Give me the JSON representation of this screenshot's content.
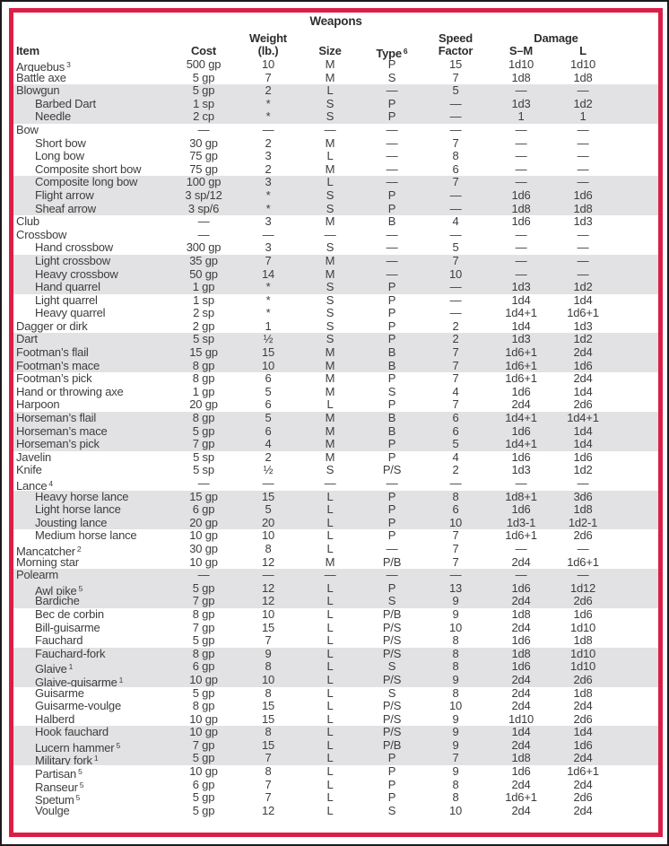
{
  "colors": {
    "border_red": "#dc1e47",
    "row_shade": "#e2e2e5",
    "text": "#3d3d3d",
    "frame_black": "#1b1b1b"
  },
  "table": {
    "title": "Weapons",
    "columns": {
      "item": "Item",
      "cost": "Cost",
      "weight_line1": "Weight",
      "weight_line2": "(lb.)",
      "size": "Size",
      "type": "Type",
      "type_sup": "6",
      "speed_line1": "Speed",
      "speed_line2": "Factor",
      "damage": "Damage",
      "sm": "S–M",
      "l": "L"
    },
    "rows": [
      {
        "item": "Arquebus",
        "sup": "3",
        "indent": false,
        "shaded": false,
        "cost": "500 gp",
        "weight": "10",
        "size": "M",
        "type": "P",
        "speed": "15",
        "sm": "1d10",
        "l": "1d10"
      },
      {
        "item": "Battle axe",
        "indent": false,
        "shaded": false,
        "cost": "5 gp",
        "weight": "7",
        "size": "M",
        "type": "S",
        "speed": "7",
        "sm": "1d8",
        "l": "1d8"
      },
      {
        "item": "Blowgun",
        "indent": false,
        "shaded": true,
        "cost": "5 gp",
        "weight": "2",
        "size": "L",
        "type": "—",
        "speed": "5",
        "sm": "—",
        "l": "—"
      },
      {
        "item": "Barbed Dart",
        "indent": true,
        "shaded": true,
        "cost": "1 sp",
        "weight": "*",
        "size": "S",
        "type": "P",
        "speed": "—",
        "sm": "1d3",
        "l": "1d2"
      },
      {
        "item": "Needle",
        "indent": true,
        "shaded": true,
        "cost": "2 cp",
        "weight": "*",
        "size": "S",
        "type": "P",
        "speed": "—",
        "sm": "1",
        "l": "1"
      },
      {
        "item": "Bow",
        "indent": false,
        "shaded": false,
        "cost": "—",
        "weight": "—",
        "size": "—",
        "type": "—",
        "speed": "—",
        "sm": "—",
        "l": "—"
      },
      {
        "item": "Short bow",
        "indent": true,
        "shaded": false,
        "cost": "30 gp",
        "weight": "2",
        "size": "M",
        "type": "—",
        "speed": "7",
        "sm": "—",
        "l": "—"
      },
      {
        "item": "Long bow",
        "indent": true,
        "shaded": false,
        "cost": "75 gp",
        "weight": "3",
        "size": "L",
        "type": "—",
        "speed": "8",
        "sm": "—",
        "l": "—"
      },
      {
        "item": "Composite short bow",
        "indent": true,
        "shaded": false,
        "cost": "75 gp",
        "weight": "2",
        "size": "M",
        "type": "—",
        "speed": "6",
        "sm": "—",
        "l": "—"
      },
      {
        "item": "Composite long bow",
        "indent": true,
        "shaded": true,
        "cost": "100 gp",
        "weight": "3",
        "size": "L",
        "type": "—",
        "speed": "7",
        "sm": "—",
        "l": "—"
      },
      {
        "item": "Flight arrow",
        "indent": true,
        "shaded": true,
        "cost": "3 sp/12",
        "weight": "*",
        "size": "S",
        "type": "P",
        "speed": "—",
        "sm": "1d6",
        "l": "1d6"
      },
      {
        "item": "Sheaf arrow",
        "indent": true,
        "shaded": true,
        "cost": "3 sp/6",
        "weight": "*",
        "size": "S",
        "type": "P",
        "speed": "—",
        "sm": "1d8",
        "l": "1d8"
      },
      {
        "item": "Club",
        "indent": false,
        "shaded": false,
        "cost": "—",
        "weight": "3",
        "size": "M",
        "type": "B",
        "speed": "4",
        "sm": "1d6",
        "l": "1d3"
      },
      {
        "item": "Crossbow",
        "indent": false,
        "shaded": false,
        "cost": "—",
        "weight": "—",
        "size": "—",
        "type": "—",
        "speed": "—",
        "sm": "—",
        "l": "—"
      },
      {
        "item": "Hand crossbow",
        "indent": true,
        "shaded": false,
        "cost": "300 gp",
        "weight": "3",
        "size": "S",
        "type": "—",
        "speed": "5",
        "sm": "—",
        "l": "—"
      },
      {
        "item": "Light crossbow",
        "indent": true,
        "shaded": true,
        "cost": "35 gp",
        "weight": "7",
        "size": "M",
        "type": "—",
        "speed": "7",
        "sm": "—",
        "l": "—"
      },
      {
        "item": "Heavy crossbow",
        "indent": true,
        "shaded": true,
        "cost": "50 gp",
        "weight": "14",
        "size": "M",
        "type": "—",
        "speed": "10",
        "sm": "—",
        "l": "—"
      },
      {
        "item": "Hand quarrel",
        "indent": true,
        "shaded": true,
        "cost": "1 gp",
        "weight": "*",
        "size": "S",
        "type": "P",
        "speed": "—",
        "sm": "1d3",
        "l": "1d2"
      },
      {
        "item": "Light quarrel",
        "indent": true,
        "shaded": false,
        "cost": "1 sp",
        "weight": "*",
        "size": "S",
        "type": "P",
        "speed": "—",
        "sm": "1d4",
        "l": "1d4"
      },
      {
        "item": "Heavy quarrel",
        "indent": true,
        "shaded": false,
        "cost": "2 sp",
        "weight": "*",
        "size": "S",
        "type": "P",
        "speed": "—",
        "sm": "1d4+1",
        "l": "1d6+1"
      },
      {
        "item": "Dagger or dirk",
        "indent": false,
        "shaded": false,
        "cost": "2 gp",
        "weight": "1",
        "size": "S",
        "type": "P",
        "speed": "2",
        "sm": "1d4",
        "l": "1d3"
      },
      {
        "item": "Dart",
        "indent": false,
        "shaded": true,
        "cost": "5 sp",
        "weight": "½",
        "size": "S",
        "type": "P",
        "speed": "2",
        "sm": "1d3",
        "l": "1d2"
      },
      {
        "item": "Footman’s flail",
        "indent": false,
        "shaded": true,
        "cost": "15 gp",
        "weight": "15",
        "size": "M",
        "type": "B",
        "speed": "7",
        "sm": "1d6+1",
        "l": "2d4"
      },
      {
        "item": "Footman’s mace",
        "indent": false,
        "shaded": true,
        "cost": "8 gp",
        "weight": "10",
        "size": "M",
        "type": "B",
        "speed": "7",
        "sm": "1d6+1",
        "l": "1d6"
      },
      {
        "item": "Footman’s pick",
        "indent": false,
        "shaded": false,
        "cost": "8 gp",
        "weight": "6",
        "size": "M",
        "type": "P",
        "speed": "7",
        "sm": "1d6+1",
        "l": "2d4"
      },
      {
        "item": "Hand or throwing axe",
        "indent": false,
        "shaded": false,
        "cost": "1 gp",
        "weight": "5",
        "size": "M",
        "type": "S",
        "speed": "4",
        "sm": "1d6",
        "l": "1d4"
      },
      {
        "item": "Harpoon",
        "indent": false,
        "shaded": false,
        "cost": "20 gp",
        "weight": "6",
        "size": "L",
        "type": "P",
        "speed": "7",
        "sm": "2d4",
        "l": "2d6"
      },
      {
        "item": "Horseman’s flail",
        "indent": false,
        "shaded": true,
        "cost": "8 gp",
        "weight": "5",
        "size": "M",
        "type": "B",
        "speed": "6",
        "sm": "1d4+1",
        "l": "1d4+1"
      },
      {
        "item": "Horseman’s mace",
        "indent": false,
        "shaded": true,
        "cost": "5 gp",
        "weight": "6",
        "size": "M",
        "type": "B",
        "speed": "6",
        "sm": "1d6",
        "l": "1d4"
      },
      {
        "item": "Horseman’s pick",
        "indent": false,
        "shaded": true,
        "cost": "7 gp",
        "weight": "4",
        "size": "M",
        "type": "P",
        "speed": "5",
        "sm": "1d4+1",
        "l": "1d4"
      },
      {
        "item": "Javelin",
        "indent": false,
        "shaded": false,
        "cost": "5 sp",
        "weight": "2",
        "size": "M",
        "type": "P",
        "speed": "4",
        "sm": "1d6",
        "l": "1d6"
      },
      {
        "item": "Knife",
        "indent": false,
        "shaded": false,
        "cost": "5 sp",
        "weight": "½",
        "size": "S",
        "type": "P/S",
        "speed": "2",
        "sm": "1d3",
        "l": "1d2"
      },
      {
        "item": "Lance",
        "sup": "4",
        "indent": false,
        "shaded": false,
        "cost": "—",
        "weight": "—",
        "size": "—",
        "type": "—",
        "speed": "—",
        "sm": "—",
        "l": "—"
      },
      {
        "item": "Heavy horse lance",
        "indent": true,
        "shaded": true,
        "cost": "15 gp",
        "weight": "15",
        "size": "L",
        "type": "P",
        "speed": "8",
        "sm": "1d8+1",
        "l": "3d6"
      },
      {
        "item": "Light horse lance",
        "indent": true,
        "shaded": true,
        "cost": "6 gp",
        "weight": "5",
        "size": "L",
        "type": "P",
        "speed": "6",
        "sm": "1d6",
        "l": "1d8"
      },
      {
        "item": "Jousting lance",
        "indent": true,
        "shaded": true,
        "cost": "20 gp",
        "weight": "20",
        "size": "L",
        "type": "P",
        "speed": "10",
        "sm": "1d3-1",
        "l": "1d2-1"
      },
      {
        "item": "Medium horse lance",
        "indent": true,
        "shaded": false,
        "cost": "10 gp",
        "weight": "10",
        "size": "L",
        "type": "P",
        "speed": "7",
        "sm": "1d6+1",
        "l": "2d6"
      },
      {
        "item": "Mancatcher",
        "sup": "2",
        "indent": false,
        "shaded": false,
        "cost": "30 gp",
        "weight": "8",
        "size": "L",
        "type": "—",
        "speed": "7",
        "sm": "—",
        "l": "—"
      },
      {
        "item": "Morning star",
        "indent": false,
        "shaded": false,
        "cost": "10 gp",
        "weight": "12",
        "size": "M",
        "type": "P/B",
        "speed": "7",
        "sm": "2d4",
        "l": "1d6+1"
      },
      {
        "item": "Polearm",
        "indent": false,
        "shaded": true,
        "cost": "—",
        "weight": "—",
        "size": "—",
        "type": "—",
        "speed": "—",
        "sm": "—",
        "l": "—"
      },
      {
        "item": "Awl pike",
        "sup": "5",
        "indent": true,
        "shaded": true,
        "cost": "5 gp",
        "weight": "12",
        "size": "L",
        "type": "P",
        "speed": "13",
        "sm": "1d6",
        "l": "1d12"
      },
      {
        "item": "Bardiche",
        "indent": true,
        "shaded": true,
        "cost": "7 gp",
        "weight": "12",
        "size": "L",
        "type": "S",
        "speed": "9",
        "sm": "2d4",
        "l": "2d6"
      },
      {
        "item": "Bec de corbin",
        "indent": true,
        "shaded": false,
        "cost": "8 gp",
        "weight": "10",
        "size": "L",
        "type": "P/B",
        "speed": "9",
        "sm": "1d8",
        "l": "1d6"
      },
      {
        "item": "Bill-guisarme",
        "indent": true,
        "shaded": false,
        "cost": "7 gp",
        "weight": "15",
        "size": "L",
        "type": "P/S",
        "speed": "10",
        "sm": "2d4",
        "l": "1d10"
      },
      {
        "item": "Fauchard",
        "indent": true,
        "shaded": false,
        "cost": "5 gp",
        "weight": "7",
        "size": "L",
        "type": "P/S",
        "speed": "8",
        "sm": "1d6",
        "l": "1d8"
      },
      {
        "item": "Fauchard-fork",
        "indent": true,
        "shaded": true,
        "cost": "8 gp",
        "weight": "9",
        "size": "L",
        "type": "P/S",
        "speed": "8",
        "sm": "1d8",
        "l": "1d10"
      },
      {
        "item": "Glaive",
        "sup": "1",
        "indent": true,
        "shaded": true,
        "cost": "6 gp",
        "weight": "8",
        "size": "L",
        "type": "S",
        "speed": "8",
        "sm": "1d6",
        "l": "1d10"
      },
      {
        "item": "Glaive-guisarme",
        "sup": "1",
        "indent": true,
        "shaded": true,
        "cost": "10 gp",
        "weight": "10",
        "size": "L",
        "type": "P/S",
        "speed": "9",
        "sm": "2d4",
        "l": "2d6"
      },
      {
        "item": "Guisarme",
        "indent": true,
        "shaded": false,
        "cost": "5 gp",
        "weight": "8",
        "size": "L",
        "type": "S",
        "speed": "8",
        "sm": "2d4",
        "l": "1d8"
      },
      {
        "item": "Guisarme-voulge",
        "indent": true,
        "shaded": false,
        "cost": "8 gp",
        "weight": "15",
        "size": "L",
        "type": "P/S",
        "speed": "10",
        "sm": "2d4",
        "l": "2d4"
      },
      {
        "item": "Halberd",
        "indent": true,
        "shaded": false,
        "cost": "10 gp",
        "weight": "15",
        "size": "L",
        "type": "P/S",
        "speed": "9",
        "sm": "1d10",
        "l": "2d6"
      },
      {
        "item": "Hook fauchard",
        "indent": true,
        "shaded": true,
        "cost": "10 gp",
        "weight": "8",
        "size": "L",
        "type": "P/S",
        "speed": "9",
        "sm": "1d4",
        "l": "1d4"
      },
      {
        "item": "Lucern hammer",
        "sup": "5",
        "indent": true,
        "shaded": true,
        "cost": "7 gp",
        "weight": "15",
        "size": "L",
        "type": "P/B",
        "speed": "9",
        "sm": "2d4",
        "l": "1d6"
      },
      {
        "item": "Military fork",
        "sup": "1",
        "indent": true,
        "shaded": true,
        "cost": "5 gp",
        "weight": "7",
        "size": "L",
        "type": "P",
        "speed": "7",
        "sm": "1d8",
        "l": "2d4"
      },
      {
        "item": "Partisan",
        "sup": "5",
        "indent": true,
        "shaded": false,
        "cost": "10 gp",
        "weight": "8",
        "size": "L",
        "type": "P",
        "speed": "9",
        "sm": "1d6",
        "l": "1d6+1"
      },
      {
        "item": "Ranseur",
        "sup": "5",
        "indent": true,
        "shaded": false,
        "cost": "6 gp",
        "weight": "7",
        "size": "L",
        "type": "P",
        "speed": "8",
        "sm": "2d4",
        "l": "2d4"
      },
      {
        "item": "Spetum",
        "sup": "5",
        "indent": true,
        "shaded": false,
        "cost": "5 gp",
        "weight": "7",
        "size": "L",
        "type": "P",
        "speed": "8",
        "sm": "1d6+1",
        "l": "2d6"
      },
      {
        "item": "Voulge",
        "indent": true,
        "shaded": false,
        "cost": "5 gp",
        "weight": "12",
        "size": "L",
        "type": "S",
        "speed": "10",
        "sm": "2d4",
        "l": "2d4"
      }
    ]
  }
}
